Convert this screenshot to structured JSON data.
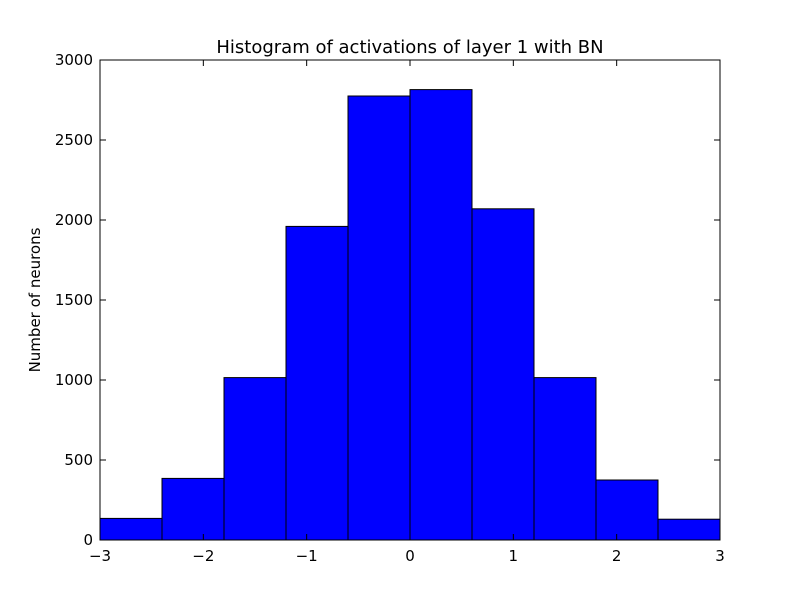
{
  "chart_data": {
    "type": "bar",
    "title": "Histogram of activations of layer 1  with BN",
    "xlabel": "",
    "ylabel": "Number of neurons",
    "xlim": [
      -3,
      3
    ],
    "ylim": [
      0,
      3000
    ],
    "bins": [
      {
        "x0": -3.0,
        "x1": -2.4,
        "value": 135
      },
      {
        "x0": -2.4,
        "x1": -1.8,
        "value": 385
      },
      {
        "x0": -1.8,
        "x1": -1.2,
        "value": 1015
      },
      {
        "x0": -1.2,
        "x1": -0.6,
        "value": 1960
      },
      {
        "x0": -0.6,
        "x1": 0.0,
        "value": 2775
      },
      {
        "x0": 0.0,
        "x1": 0.6,
        "value": 2815
      },
      {
        "x0": 0.6,
        "x1": 1.2,
        "value": 2070
      },
      {
        "x0": 1.2,
        "x1": 1.8,
        "value": 1015
      },
      {
        "x0": 1.8,
        "x1": 2.4,
        "value": 375
      },
      {
        "x0": 2.4,
        "x1": 3.0,
        "value": 130
      }
    ],
    "x_ticks": [
      -3,
      -2,
      -1,
      0,
      1,
      2,
      3
    ],
    "x_tick_labels": [
      "−3",
      "−2",
      "−1",
      "0",
      "1",
      "2",
      "3"
    ],
    "y_ticks": [
      0,
      500,
      1000,
      1500,
      2000,
      2500,
      3000
    ],
    "y_tick_labels": [
      "0",
      "500",
      "1000",
      "1500",
      "2000",
      "2500",
      "3000"
    ],
    "bar_color": "#0000ff",
    "edge_color": "#000000",
    "grid": false
  }
}
